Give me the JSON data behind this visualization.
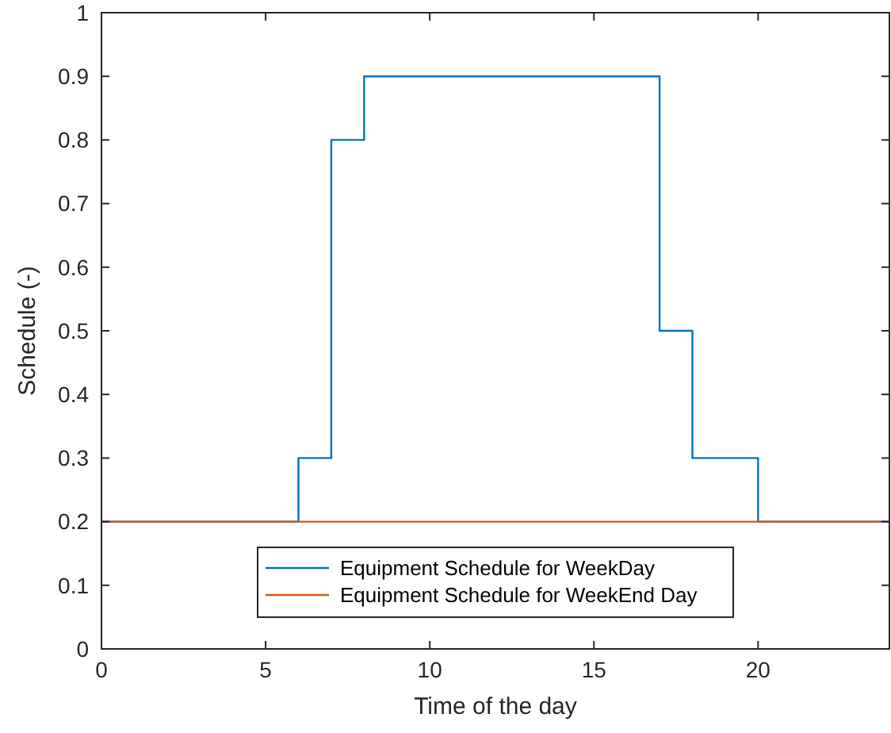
{
  "chart_data": {
    "type": "step",
    "xlabel": "Time of the day",
    "ylabel": "Schedule (-)",
    "x": [
      0,
      6,
      7,
      8,
      17,
      18,
      20,
      24
    ],
    "series": [
      {
        "name": "Equipment Schedule for WeekDay",
        "color": "#0072bd",
        "values": [
          0.2,
          0.3,
          0.8,
          0.9,
          0.5,
          0.3,
          0.2,
          0.2
        ]
      },
      {
        "name": "Equipment Schedule for WeekEnd Day",
        "color": "#d95319",
        "values": [
          0.2,
          0.2,
          0.2,
          0.2,
          0.2,
          0.2,
          0.2,
          0.2
        ]
      }
    ],
    "xlim": [
      0,
      24
    ],
    "xticks": [
      0,
      5,
      10,
      15,
      20
    ],
    "ylim": [
      0,
      1
    ],
    "yticks": [
      0,
      0.1,
      0.2,
      0.3,
      0.4,
      0.5,
      0.6,
      0.7,
      0.8,
      0.9,
      1
    ],
    "legend": "bottom",
    "grid": false
  }
}
